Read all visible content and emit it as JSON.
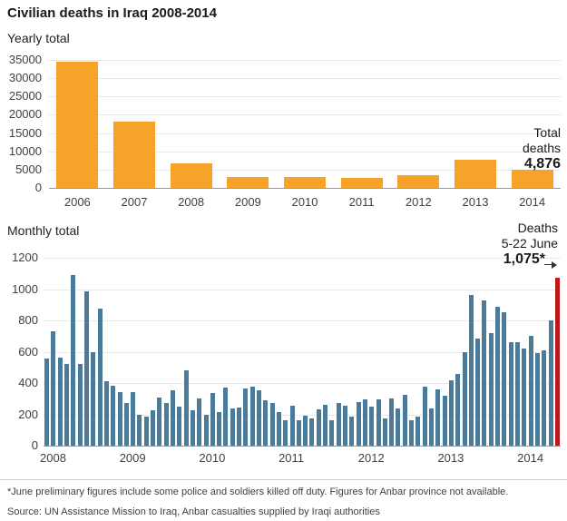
{
  "title": "Civilian deaths in Iraq 2008-2014",
  "footnote": "*June preliminary figures include some police and soldiers killed off duty. Figures for Anbar province not available.",
  "source": "Source: UN Assistance Mission to Iraq, Anbar casualties supplied by Iraqi authorities",
  "colors": {
    "orange": "#F7A329",
    "blue": "#4A7B9B",
    "red": "#BB1919"
  },
  "chart_data": [
    {
      "id": "yearly",
      "type": "bar",
      "title": "Yearly total",
      "categories": [
        "2006",
        "2007",
        "2008",
        "2009",
        "2010",
        "2011",
        "2012",
        "2013",
        "2014"
      ],
      "values": [
        34500,
        18000,
        6800,
        3000,
        3000,
        2800,
        3400,
        7800,
        4876
      ],
      "ylim": [
        0,
        35000
      ],
      "ytick_step": 5000,
      "bar_color_key": "orange",
      "grid": true,
      "legend": "none",
      "annotation": {
        "label_lines": [
          "Total",
          "deaths"
        ],
        "value": "4,876"
      }
    },
    {
      "id": "monthly",
      "type": "bar",
      "title": "Monthly total",
      "x_months": "Jan 2008 - Jun 2014",
      "year_labels": [
        "2008",
        "2009",
        "2010",
        "2011",
        "2012",
        "2013",
        "2014"
      ],
      "values": [
        555,
        730,
        560,
        520,
        1090,
        520,
        985,
        595,
        875,
        410,
        385,
        340,
        275,
        340,
        200,
        185,
        225,
        305,
        275,
        355,
        250,
        480,
        225,
        300,
        195,
        335,
        215,
        370,
        240,
        245,
        365,
        375,
        355,
        290,
        270,
        215,
        160,
        255,
        160,
        190,
        175,
        230,
        260,
        160,
        275,
        255,
        185,
        280,
        295,
        250,
        295,
        175,
        300,
        235,
        325,
        165,
        185,
        375,
        235,
        360,
        319,
        418,
        456,
        595,
        963,
        685,
        928,
        716,
        887,
        852,
        659,
        661,
        618,
        703,
        592,
        610,
        799,
        1075
      ],
      "ylim": [
        0,
        1200
      ],
      "ytick_step": 200,
      "bar_color_key": "blue",
      "highlight_last": true,
      "highlight_color_key": "red",
      "grid": true,
      "legend": "none",
      "annotation": {
        "label_lines": [
          "Deaths",
          "5-22 June"
        ],
        "value": "1,075*"
      }
    }
  ]
}
